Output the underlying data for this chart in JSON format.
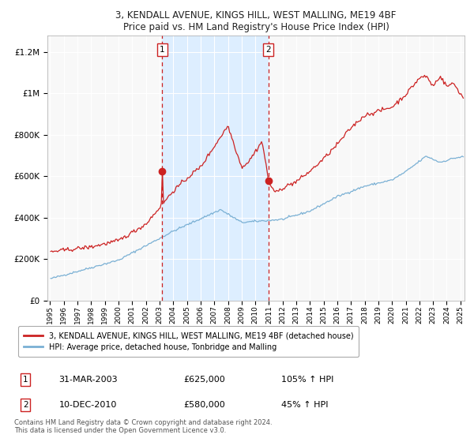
{
  "title": "3, KENDALL AVENUE, KINGS HILL, WEST MALLING, ME19 4BF",
  "subtitle": "Price paid vs. HM Land Registry's House Price Index (HPI)",
  "red_label": "3, KENDALL AVENUE, KINGS HILL, WEST MALLING, ME19 4BF (detached house)",
  "blue_label": "HPI: Average price, detached house, Tonbridge and Malling",
  "footnote": "Contains HM Land Registry data © Crown copyright and database right 2024.\nThis data is licensed under the Open Government Licence v3.0.",
  "sale1_date": "31-MAR-2003",
  "sale1_price": "£625,000",
  "sale1_hpi": "105% ↑ HPI",
  "sale2_date": "10-DEC-2010",
  "sale2_price": "£580,000",
  "sale2_hpi": "45% ↑ HPI",
  "red_color": "#cc2222",
  "blue_color": "#7ab0d4",
  "shade_color": "#ddeeff",
  "vline_color": "#cc2222",
  "marker1_x": 2003.2,
  "marker1_y": 625000,
  "marker2_x": 2010.95,
  "marker2_y": 580000,
  "ylim": [
    0,
    1280000
  ],
  "xlim_start": 1994.8,
  "xlim_end": 2025.3,
  "background_color": "#ffffff",
  "plot_bg": "#f7f7f7"
}
